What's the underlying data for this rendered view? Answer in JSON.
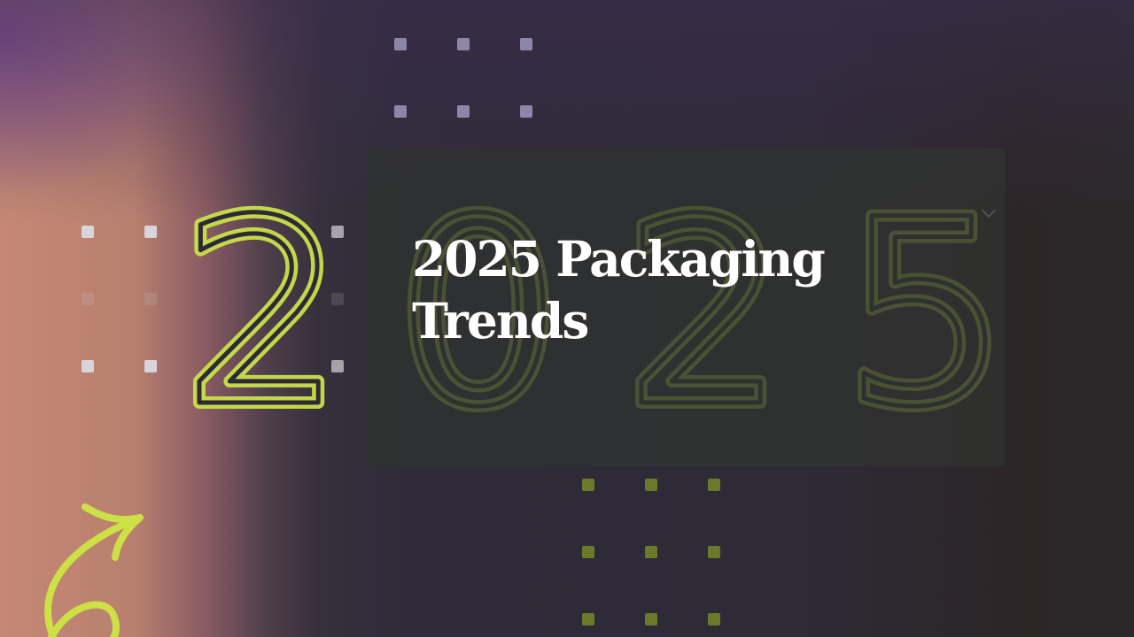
{
  "hero": {
    "title_line1": "2025 Packaging",
    "title_line2": "Trends",
    "decor_numerals": "2025"
  },
  "colors": {
    "neon_green": "#c9e04a",
    "background": "#2d2a36",
    "panel": "#303230",
    "title_text": "#ffffff"
  },
  "icons": [
    "chevron-down-icon",
    "curly-arrow-icon"
  ]
}
